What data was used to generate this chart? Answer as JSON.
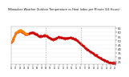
{
  "title": "Milwaukee Weather Outdoor Temperature vs Heat Index per Minute (24 Hours)",
  "bg_color": "#ffffff",
  "line_color_temp": "#cc0000",
  "line_color_heat": "#ff8800",
  "grid_color": "#dddddd",
  "vline_color": "#aaaaaa",
  "y_label_color": "#333333",
  "ylim": [
    22,
    67
  ],
  "yticks": [
    25,
    30,
    35,
    40,
    45,
    50,
    55,
    60,
    65
  ],
  "vlines_x": [
    0.333,
    0.667
  ],
  "n_points": 1440
}
